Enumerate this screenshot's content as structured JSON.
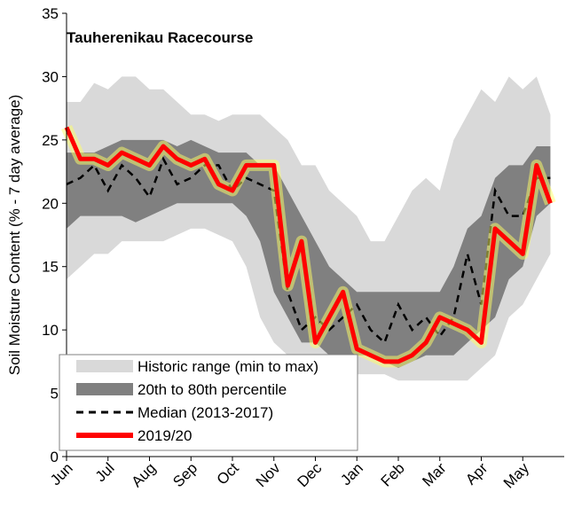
{
  "chart_data": {
    "type": "line",
    "title": "Tauherenikau Racecourse",
    "y_label": "Soil Moisture Content (% - 7 day average)",
    "categories": [
      "Jun",
      null,
      null,
      "Jul",
      null,
      null,
      "Aug",
      null,
      null,
      "Sep",
      null,
      null,
      "Oct",
      null,
      null,
      "Nov",
      null,
      null,
      "Dec",
      null,
      null,
      "Jan",
      null,
      null,
      "Feb",
      null,
      null,
      "Mar",
      null,
      null,
      "Apr",
      null,
      null,
      "May",
      null,
      null
    ],
    "ylim": [
      0,
      35
    ],
    "yticks": [
      0,
      5,
      10,
      15,
      20,
      25,
      30,
      35
    ],
    "grid": false,
    "bands": [
      {
        "name": "Historic range (min to max)",
        "color": "#d9d9d9",
        "lower": [
          14,
          15,
          16,
          16,
          17,
          17,
          17,
          17,
          17.5,
          18,
          18,
          17.5,
          17,
          15,
          11,
          9,
          8,
          7.5,
          7,
          7,
          6.5,
          6.5,
          6.5,
          6.5,
          6,
          6,
          6,
          6,
          6,
          6,
          7,
          8,
          11,
          12,
          14,
          16
        ],
        "upper": [
          28,
          28,
          29.5,
          29,
          30,
          30,
          29,
          29,
          28,
          27,
          27,
          26.5,
          27,
          27,
          27,
          26,
          25,
          23,
          23,
          21,
          20,
          19,
          17,
          17,
          19,
          21,
          22,
          21,
          25,
          27,
          29,
          28,
          30,
          29,
          30,
          27
        ]
      },
      {
        "name": "20th to 80th percentile",
        "color": "#808080",
        "lower": [
          18,
          19,
          19,
          19,
          19,
          18.5,
          19,
          19.5,
          20,
          20,
          20,
          20,
          20,
          19,
          17,
          13,
          11,
          9,
          9,
          8,
          8,
          8,
          8,
          7.5,
          7,
          7.5,
          8,
          8,
          8,
          9,
          10,
          11,
          14,
          15,
          19,
          20
        ],
        "upper": [
          24,
          24,
          24,
          24.5,
          25,
          25,
          25,
          25,
          24.5,
          25,
          24.5,
          24,
          24,
          24,
          23,
          23,
          21,
          19,
          17,
          15,
          14,
          13,
          13,
          13,
          13,
          13,
          13,
          13,
          15,
          18,
          19,
          22,
          23,
          23,
          24.5,
          24.5
        ]
      }
    ],
    "series": [
      {
        "name": "Median (2013-2017)",
        "color": "#000000",
        "values": [
          21.5,
          22,
          23,
          21,
          23,
          22,
          20.5,
          23.5,
          21.5,
          22,
          23,
          23,
          21,
          22,
          21.5,
          21,
          13,
          10,
          11,
          10,
          11,
          12,
          10,
          9,
          12,
          10,
          11,
          9.5,
          11,
          16,
          12,
          21,
          19,
          19,
          22,
          22
        ]
      },
      {
        "name": "2019/20",
        "color": "#ff0000",
        "values": [
          26,
          23.5,
          23.5,
          23,
          24,
          23.5,
          23,
          24.5,
          23.5,
          23,
          23.5,
          21.5,
          21,
          23,
          23,
          23,
          13.5,
          17,
          9,
          11,
          13,
          8.5,
          8,
          7.5,
          7.5,
          8,
          9,
          11,
          10.5,
          10,
          9,
          18,
          17,
          16,
          23,
          20
        ]
      }
    ]
  }
}
